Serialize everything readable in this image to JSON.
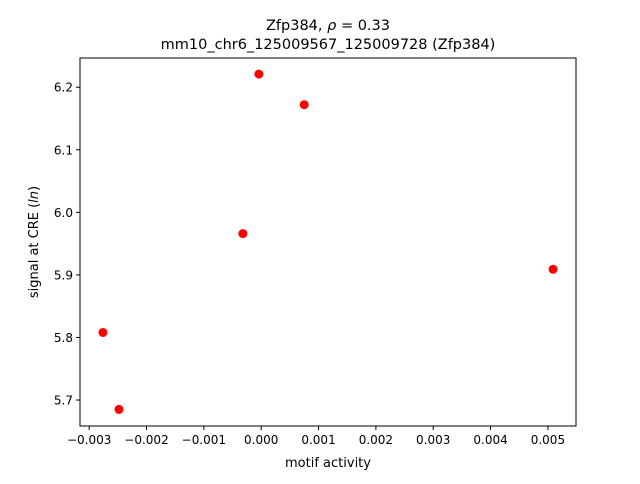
{
  "chart_data": {
    "type": "scatter",
    "title_line1_prefix": "Zfp384, ",
    "title_rho": "ρ",
    "title_rho_value": " = 0.33",
    "title_line2": "mm10_chr6_125009567_125009728 (Zfp384)",
    "xlabel": "motif activity",
    "ylabel_prefix": "signal at CRE (",
    "ylabel_italic": "ln",
    "ylabel_suffix": ")",
    "xlim": [
      -0.00316,
      0.00549
    ],
    "ylim": [
      5.6585,
      6.2467
    ],
    "xticks": [
      -0.003,
      -0.002,
      -0.001,
      0.0,
      0.001,
      0.002,
      0.003,
      0.004,
      0.005
    ],
    "xtick_labels": [
      "−0.003",
      "−0.002",
      "−0.001",
      "0.000",
      "0.001",
      "0.002",
      "0.003",
      "0.004",
      "0.005"
    ],
    "yticks": [
      5.7,
      5.8,
      5.9,
      6.0,
      6.1,
      6.2
    ],
    "ytick_labels": [
      "5.7",
      "5.8",
      "5.9",
      "6.0",
      "6.1",
      "6.2"
    ],
    "grid": false,
    "marker_color": "#ff0000",
    "points": [
      {
        "x": -0.00276,
        "y": 5.808
      },
      {
        "x": -0.00248,
        "y": 5.685
      },
      {
        "x": -0.00032,
        "y": 5.966
      },
      {
        "x": -4e-05,
        "y": 6.221
      },
      {
        "x": 0.00075,
        "y": 6.172
      },
      {
        "x": 0.00509,
        "y": 5.909
      }
    ]
  }
}
